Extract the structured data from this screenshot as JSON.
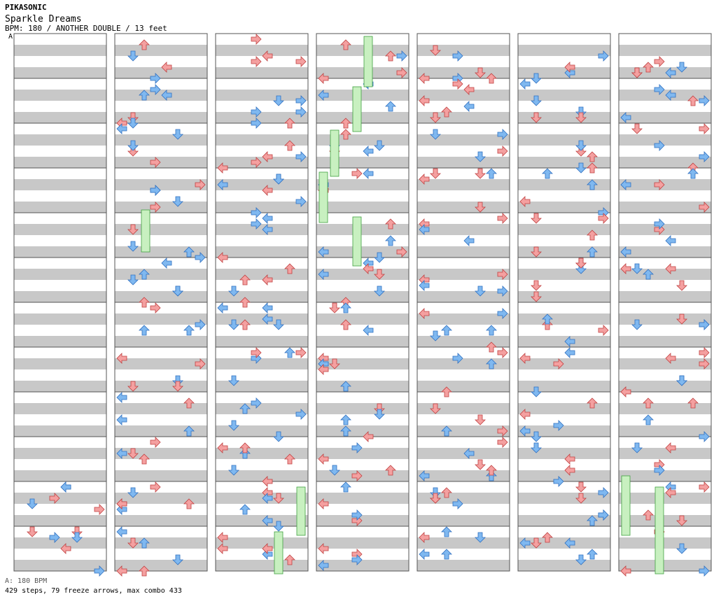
{
  "header": {
    "artist": "PIKASONIC",
    "title": "Sparkle Dreams",
    "info": "BPM: 180 / ANOTHER DOUBLE / 13 feet",
    "segment_marker": "A"
  },
  "footer": {
    "bpm_line": "A: 180 BPM",
    "stats": "429 steps, 79 freeze arrows, max combo 433"
  },
  "chart_data": {
    "type": "step-chart",
    "mode": "double",
    "columns": 7,
    "measures_per_column": 12,
    "lanes": [
      "P1-left",
      "P1-down",
      "P1-up",
      "P1-right",
      "P2-left",
      "P2-down",
      "P2-up",
      "P2-right"
    ],
    "colors": {
      "red_arrow": "#f4a0a0",
      "blue_arrow": "#7fb8f0",
      "freeze": "#c8f0c0",
      "stripe": "#c8c8c8"
    },
    "notes_sample": [
      {
        "col": 0,
        "measure": 10,
        "lane": "P2-down",
        "beat": 0.25
      },
      {
        "col": 0,
        "measure": 10,
        "lane": "P2-left",
        "beat": 0
      },
      {
        "col": 0,
        "measure": 10,
        "lane": "P2-right",
        "beat": 0.5
      },
      {
        "col": 0,
        "measure": 11,
        "lane": "P1-down",
        "beat": 0.25
      }
    ]
  }
}
